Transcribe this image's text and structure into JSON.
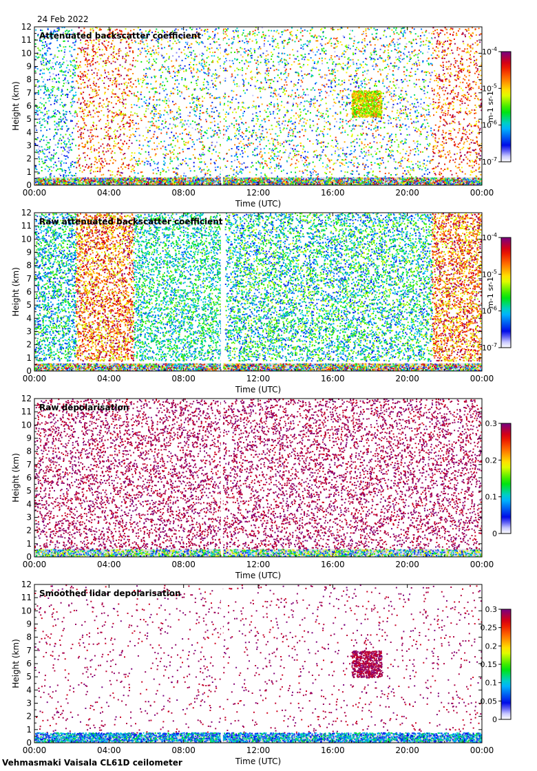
{
  "header": {
    "date": "24 Feb 2022"
  },
  "footer": {
    "instrument": "Vehmasmaki Vaisala CL61D ceilometer"
  },
  "colors": {
    "white_gap": "#ffffff",
    "missing": "#e0e0e0",
    "frame": "#000000"
  },
  "chart_data": [
    {
      "type": "heatmap",
      "title": "Attenuated backscatter coefficient",
      "xlabel": "Time (UTC)",
      "ylabel": "Height (km)",
      "xticks": [
        "00:00",
        "04:00",
        "08:00",
        "12:00",
        "16:00",
        "20:00",
        "00:00"
      ],
      "yticks": [
        "0",
        "1",
        "2",
        "3",
        "4",
        "5",
        "6",
        "7",
        "8",
        "9",
        "10",
        "11",
        "12"
      ],
      "ylim": [
        0,
        12
      ],
      "xlim_hours": [
        0,
        24
      ],
      "colorbar": {
        "scale": "log",
        "ticks": [
          "10-7",
          "10-6",
          "10-5",
          "10-4"
        ],
        "label": "m-1 sr-1",
        "range": [
          -7,
          -4
        ]
      },
      "density": 0.22,
      "regions": [
        {
          "t0": 0,
          "t1": 2.2,
          "h0": 0.6,
          "h1": 12,
          "v0": 0.05,
          "v1": 0.55,
          "d": 0.6
        },
        {
          "t0": 2.2,
          "t1": 5.3,
          "h0": 0.7,
          "h1": 12,
          "v0": 0.55,
          "v1": 1.0,
          "d": 0.55
        },
        {
          "t0": 5.3,
          "t1": 21.3,
          "h0": 0.6,
          "h1": 12,
          "v0": 0.05,
          "v1": 0.85,
          "d": 0.45
        },
        {
          "t0": 21.3,
          "t1": 24,
          "h0": 0.7,
          "h1": 12,
          "v0": 0.6,
          "v1": 1.0,
          "d": 0.55
        },
        {
          "t0": 17.0,
          "t1": 18.6,
          "h0": 5.2,
          "h1": 7.2,
          "v0": 0.45,
          "v1": 0.8,
          "d": 6
        },
        {
          "t0": 0,
          "t1": 24,
          "h0": 0,
          "h1": 0.6,
          "v0": 0.0,
          "v1": 1.0,
          "d": 5
        }
      ],
      "gaps_hours": [
        10.0
      ]
    },
    {
      "type": "heatmap",
      "title": "Raw attenuated backscatter coefficient",
      "xlabel": "Time (UTC)",
      "ylabel": "Height (km)",
      "xticks": [
        "00:00",
        "04:00",
        "08:00",
        "12:00",
        "16:00",
        "20:00",
        "00:00"
      ],
      "yticks": [
        "0",
        "1",
        "2",
        "3",
        "4",
        "5",
        "6",
        "7",
        "8",
        "9",
        "10",
        "11",
        "12"
      ],
      "ylim": [
        0,
        12
      ],
      "xlim_hours": [
        0,
        24
      ],
      "colorbar": {
        "scale": "log",
        "ticks": [
          "10-7",
          "10-6",
          "10-5",
          "10-4"
        ],
        "label": "m-1 sr-1",
        "range": [
          -7,
          -4
        ]
      },
      "density": 1.4,
      "regions": [
        {
          "t0": 0,
          "t1": 2.2,
          "h0": 0.8,
          "h1": 12,
          "v0": 0.15,
          "v1": 0.55,
          "d": 1.3
        },
        {
          "t0": 2.2,
          "t1": 5.3,
          "h0": 0.8,
          "h1": 12,
          "v0": 0.55,
          "v1": 1.0,
          "d": 1.5
        },
        {
          "t0": 5.3,
          "t1": 10.0,
          "h0": 0.8,
          "h1": 12,
          "v0": 0.2,
          "v1": 0.55,
          "d": 1.2
        },
        {
          "t0": 10.2,
          "t1": 21.3,
          "h0": 0.8,
          "h1": 12,
          "v0": 0.15,
          "v1": 0.6,
          "d": 1.2
        },
        {
          "t0": 21.3,
          "t1": 24,
          "h0": 0.8,
          "h1": 12,
          "v0": 0.55,
          "v1": 1.0,
          "d": 1.5
        },
        {
          "t0": 0,
          "t1": 24,
          "h0": 0,
          "h1": 0.6,
          "v0": 0.0,
          "v1": 1.0,
          "d": 4
        }
      ],
      "gaps_hours": [
        10.0
      ]
    },
    {
      "type": "heatmap",
      "title": "Raw depolarisation",
      "xlabel": "Time (UTC)",
      "ylabel": "Height (km)",
      "xticks": [
        "00:00",
        "04:00",
        "08:00",
        "12:00",
        "16:00",
        "20:00",
        "00:00"
      ],
      "yticks": [
        "0",
        "1",
        "2",
        "3",
        "4",
        "5",
        "6",
        "7",
        "8",
        "9",
        "10",
        "11",
        "12"
      ],
      "ylim": [
        0,
        12
      ],
      "xlim_hours": [
        0,
        24
      ],
      "colorbar": {
        "scale": "linear",
        "ticks": [
          "0",
          "0.1",
          "0.2",
          "0.3"
        ],
        "label": "",
        "range": [
          0,
          0.3
        ]
      },
      "density": 1.2,
      "regions": [
        {
          "t0": 0,
          "t1": 24,
          "h0": 0.6,
          "h1": 12,
          "v0": 0.9,
          "v1": 1.0,
          "d": 1.2
        },
        {
          "t0": 0,
          "t1": 24,
          "h0": 0,
          "h1": 0.6,
          "v0": 0.0,
          "v1": 0.7,
          "d": 3
        }
      ],
      "gaps_hours": [
        10.0
      ]
    },
    {
      "type": "heatmap",
      "title": "Smoothed lidar depolarisation",
      "xlabel": "Time (UTC)",
      "ylabel": "Height (km)",
      "xticks": [
        "00:00",
        "04:00",
        "08:00",
        "12:00",
        "16:00",
        "20:00",
        "00:00"
      ],
      "yticks": [
        "0",
        "1",
        "2",
        "3",
        "4",
        "5",
        "6",
        "7",
        "8",
        "9",
        "10",
        "11",
        "12"
      ],
      "ylim": [
        0,
        12
      ],
      "xlim_hours": [
        0,
        24
      ],
      "colorbar": {
        "scale": "linear",
        "ticks": [
          "0",
          "0.05",
          "0.1",
          "0.15",
          "0.2",
          "0.25",
          "0.3"
        ],
        "label": "",
        "range": [
          0,
          0.3
        ]
      },
      "density": 0.12,
      "regions": [
        {
          "t0": 0,
          "t1": 24,
          "h0": 0.8,
          "h1": 12,
          "v0": 0.9,
          "v1": 1.0,
          "d": 0.12
        },
        {
          "t0": 17.0,
          "t1": 18.6,
          "h0": 5.0,
          "h1": 7.0,
          "v0": 0.9,
          "v1": 1.0,
          "d": 4
        },
        {
          "t0": 0,
          "t1": 24,
          "h0": 0.1,
          "h1": 0.8,
          "v0": 0.1,
          "v1": 0.45,
          "d": 4
        }
      ],
      "gaps_hours": [
        10.0
      ]
    }
  ]
}
